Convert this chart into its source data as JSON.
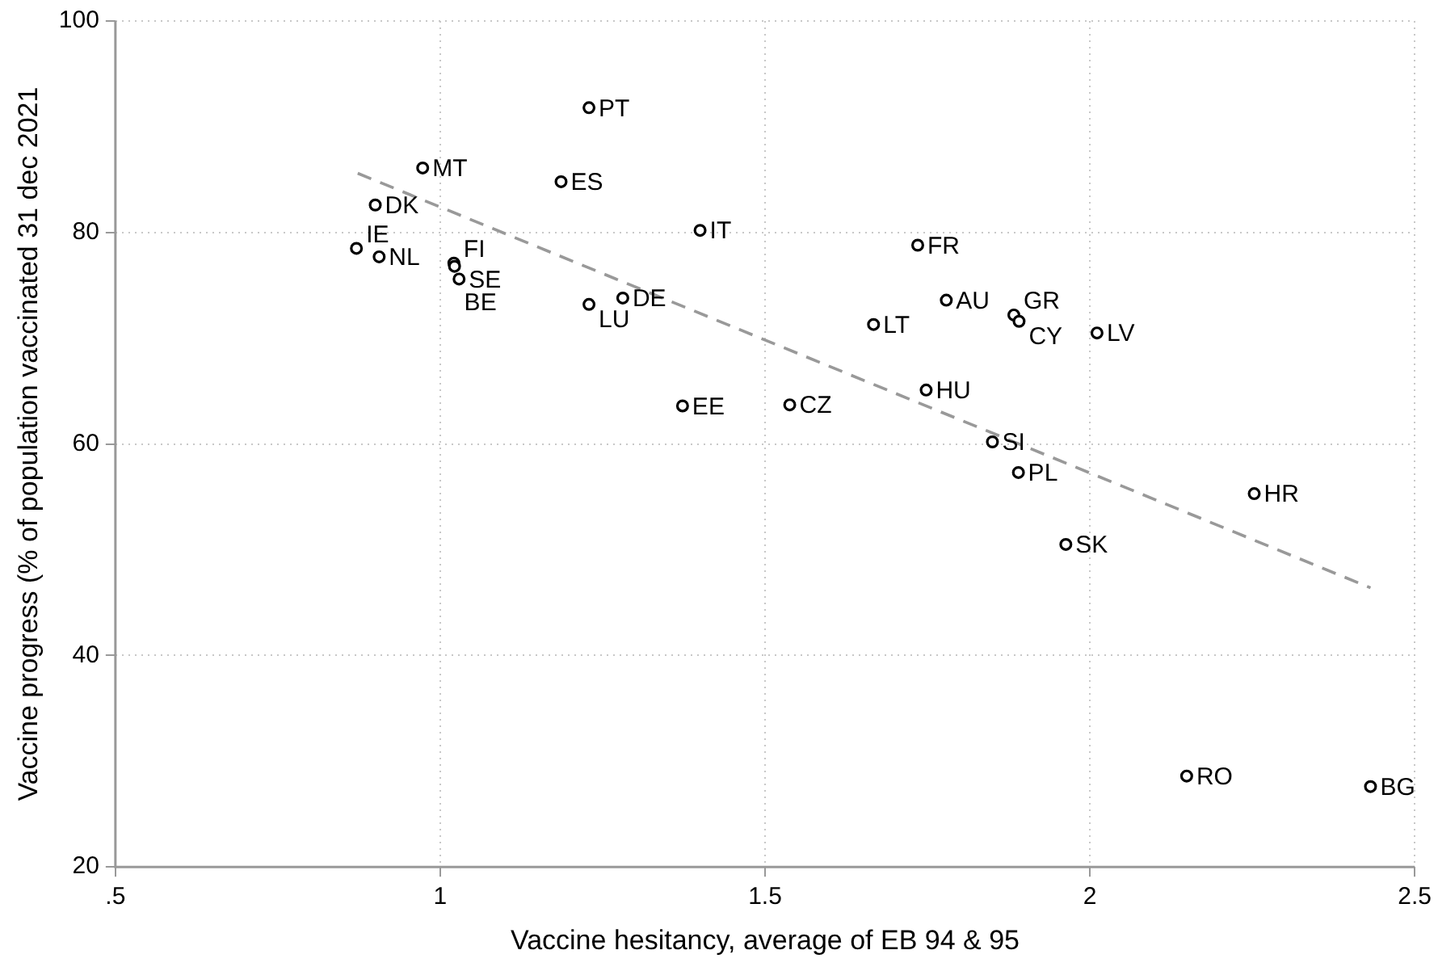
{
  "chart_data": {
    "type": "scatter",
    "xlabel": "Vaccine hesitancy, average of EB 94 & 95",
    "ylabel": "Vaccine progress (% of population vaccinated 31 dec 2021",
    "xlim": [
      0.5,
      2.5
    ],
    "xticks": [
      {
        "value": 0.5,
        "label": ".5"
      },
      1,
      1.5,
      2,
      2.5
    ],
    "ylim": [
      20,
      100
    ],
    "yticks": [
      20,
      40,
      60,
      80,
      100
    ],
    "grid": true,
    "marker": "circle",
    "series": [
      {
        "color": "#000000",
        "x": [
          1.229,
          0.973,
          1.186,
          0.9,
          1.4,
          0.871,
          0.906,
          1.021,
          1.022,
          1.029,
          1.229,
          1.281,
          1.373,
          1.735,
          1.779,
          1.667,
          1.883,
          1.891,
          2.011,
          1.538,
          1.748,
          1.85,
          1.89,
          1.963,
          2.253,
          2.149,
          2.432
        ],
        "values": [
          91.8,
          86.1,
          84.8,
          82.6,
          80.2,
          78.5,
          77.7,
          77.1,
          76.8,
          75.6,
          73.2,
          73.8,
          63.6,
          78.8,
          73.6,
          71.3,
          72.2,
          71.6,
          70.5,
          63.7,
          65.1,
          60.2,
          57.3,
          50.5,
          55.3,
          28.6,
          27.6
        ]
      },
      {
        "type": "line",
        "color": "#999999",
        "line_style": "dashed",
        "marker": "none",
        "x": [
          0.873,
          2.432
        ],
        "values": [
          85.6,
          46.4
        ]
      }
    ],
    "annotations": [
      {
        "text": "PT",
        "x": 1.229,
        "y": 91.8
      },
      {
        "text": "MT",
        "x": 0.973,
        "y": 86.1
      },
      {
        "text": "ES",
        "x": 1.186,
        "y": 84.8
      },
      {
        "text": "DK",
        "x": 0.9,
        "y": 82.6
      },
      {
        "text": "IT",
        "x": 1.4,
        "y": 80.2
      },
      {
        "text": "IE",
        "x": 0.871,
        "y": 78.5
      },
      {
        "text": "NL",
        "x": 0.906,
        "y": 77.7
      },
      {
        "text": "FI",
        "x": 1.021,
        "y": 77.1
      },
      {
        "text": "BE",
        "x": 1.022,
        "y": 76.8
      },
      {
        "text": "SE",
        "x": 1.029,
        "y": 75.6
      },
      {
        "text": "LU",
        "x": 1.229,
        "y": 73.2
      },
      {
        "text": "DE",
        "x": 1.281,
        "y": 73.8
      },
      {
        "text": "EE",
        "x": 1.373,
        "y": 63.6
      },
      {
        "text": "FR",
        "x": 1.735,
        "y": 78.8
      },
      {
        "text": "AU",
        "x": 1.779,
        "y": 73.6
      },
      {
        "text": "LT",
        "x": 1.667,
        "y": 71.3
      },
      {
        "text": "GR",
        "x": 1.883,
        "y": 72.2
      },
      {
        "text": "CY",
        "x": 1.891,
        "y": 71.6
      },
      {
        "text": "LV",
        "x": 2.011,
        "y": 70.5
      },
      {
        "text": "CZ",
        "x": 1.538,
        "y": 63.7
      },
      {
        "text": "HU",
        "x": 1.748,
        "y": 65.1
      },
      {
        "text": "SI",
        "x": 1.85,
        "y": 60.2
      },
      {
        "text": "PL",
        "x": 1.89,
        "y": 57.3
      },
      {
        "text": "SK",
        "x": 1.963,
        "y": 50.5
      },
      {
        "text": "HR",
        "x": 2.253,
        "y": 55.3
      },
      {
        "text": "RO",
        "x": 2.149,
        "y": 28.6
      },
      {
        "text": "BG",
        "x": 2.432,
        "y": 27.6
      }
    ]
  }
}
